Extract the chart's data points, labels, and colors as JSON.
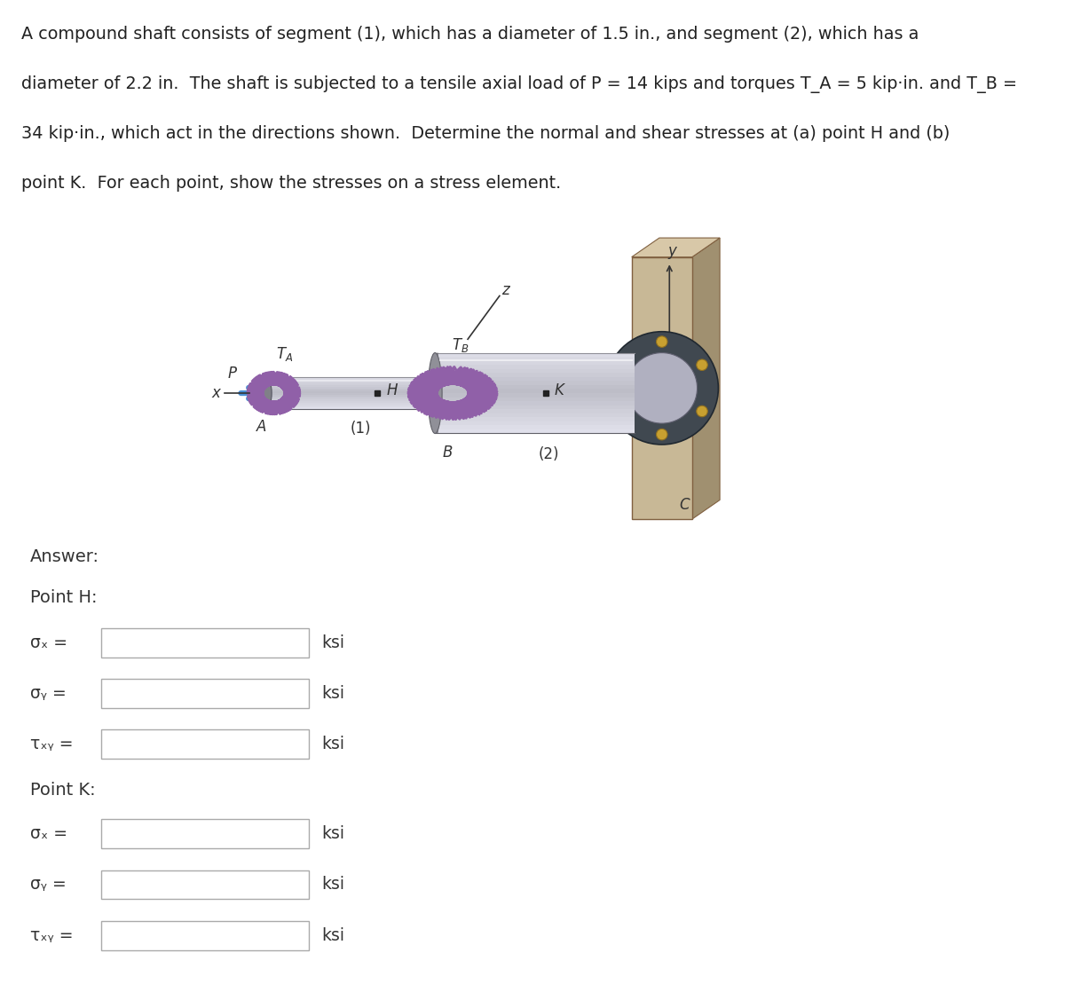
{
  "title_line1": "A compound shaft consists of segment (1), which has a diameter of 1.5 in., and segment (2), which has a",
  "title_line2": "diameter of 2.2 in.  The shaft is subjected to a tensile axial load of P = 14 kips and torques T_A = 5 kip·in. and T_B =",
  "title_line3": "34 kip·in., which act in the directions shown.  Determine the normal and shear stresses at (a) point H and (b)",
  "title_line4": "point K.  For each point, show the stresses on a stress element.",
  "answer_label": "Answer:",
  "point_H_label": "Point H:",
  "point_K_label": "Point K:",
  "unit": "ksi",
  "bg_color": "#ffffff",
  "text_color": "#222222",
  "wall_color": "#c8b896",
  "wall_dark": "#a09070",
  "wall_top": "#d8c8a8",
  "arrow_color": "#4a8fd4",
  "torque_color": "#9060a8",
  "shaft_light": "#d4d4dc",
  "shaft_mid": "#b0b0b8",
  "shaft_dark": "#808088",
  "flange_dark": "#404850",
  "flange_mid": "#b0b0c0",
  "bolt_color": "#c8a030",
  "bolt_edge": "#907020"
}
